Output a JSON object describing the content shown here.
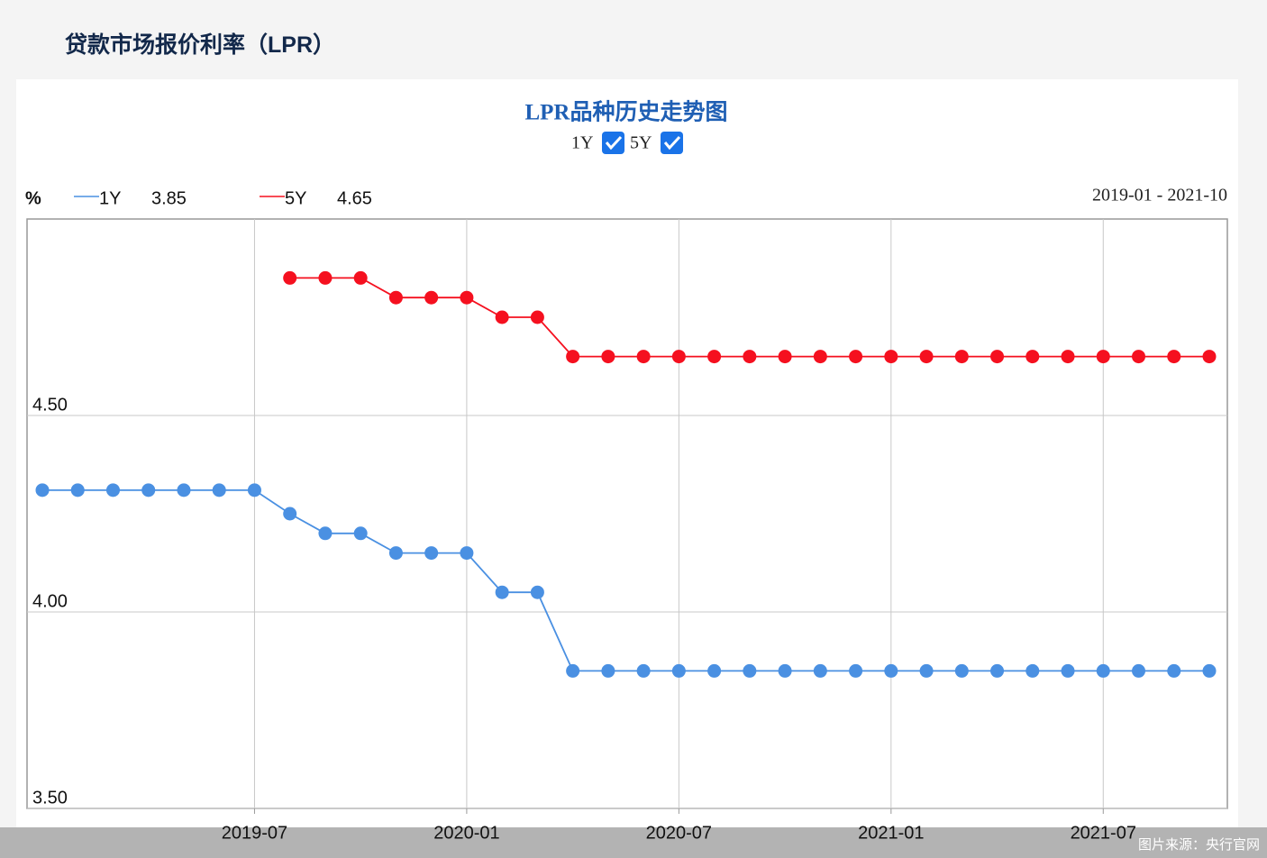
{
  "header": {
    "title": "贷款市场报价利率（LPR）"
  },
  "chart_data": {
    "type": "line",
    "title": "LPR品种历史走势图",
    "unit_label": "%",
    "range_label": "2019-01 - 2021-10",
    "categories": [
      null,
      null,
      null,
      null,
      null,
      null,
      "2019-07",
      null,
      null,
      null,
      null,
      null,
      "2020-01",
      null,
      null,
      null,
      null,
      null,
      "2020-07",
      null,
      null,
      null,
      null,
      null,
      "2021-01",
      null,
      null,
      null,
      null,
      null,
      "2021-07",
      null,
      null,
      null
    ],
    "series": [
      {
        "name": "1Y",
        "color": "#4a90e2",
        "latest": 3.85,
        "values": [
          4.31,
          4.31,
          4.31,
          4.31,
          4.31,
          4.31,
          4.31,
          4.25,
          4.2,
          4.2,
          4.15,
          4.15,
          4.15,
          4.05,
          4.05,
          3.85,
          3.85,
          3.85,
          3.85,
          3.85,
          3.85,
          3.85,
          3.85,
          3.85,
          3.85,
          3.85,
          3.85,
          3.85,
          3.85,
          3.85,
          3.85,
          3.85,
          3.85,
          3.85
        ]
      },
      {
        "name": "5Y",
        "color": "#f5101f",
        "latest": 4.65,
        "values": [
          null,
          null,
          null,
          null,
          null,
          null,
          null,
          4.85,
          4.85,
          4.85,
          4.8,
          4.8,
          4.8,
          4.75,
          4.75,
          4.65,
          4.65,
          4.65,
          4.65,
          4.65,
          4.65,
          4.65,
          4.65,
          4.65,
          4.65,
          4.65,
          4.65,
          4.65,
          4.65,
          4.65,
          4.65,
          4.65,
          4.65,
          4.65
        ]
      }
    ],
    "ylim": [
      3.5,
      5.0
    ],
    "yticks": [
      {
        "value": 3.5,
        "label": "3.50"
      },
      {
        "value": 4.0,
        "label": "4.00"
      },
      {
        "value": 4.5,
        "label": "4.50"
      }
    ],
    "grid": true
  },
  "footer": {
    "source": "图片来源：央行官网"
  }
}
